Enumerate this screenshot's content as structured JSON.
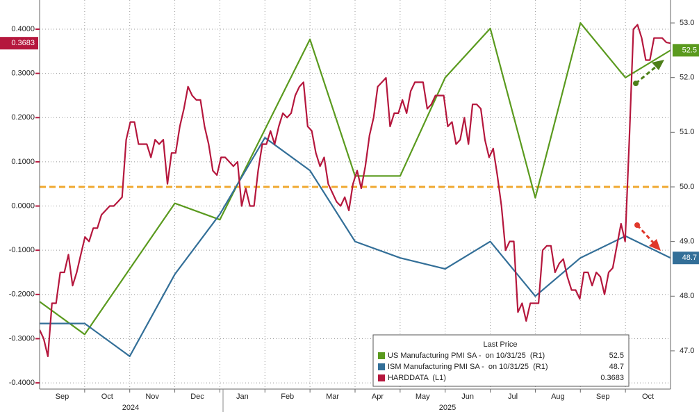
{
  "chart_data": {
    "type": "line",
    "xlim": [
      "2024-09",
      "2025-11"
    ],
    "xticks": [
      {
        "value": "2024-09",
        "label": "Sep"
      },
      {
        "value": "2024-10",
        "label": "Oct"
      },
      {
        "value": "2024-11",
        "label": "Nov"
      },
      {
        "value": "2024-12",
        "label": "Dec"
      },
      {
        "value": "2025-01",
        "label": "Jan"
      },
      {
        "value": "2025-02",
        "label": "Feb"
      },
      {
        "value": "2025-03",
        "label": "Mar"
      },
      {
        "value": "2025-04",
        "label": "Apr"
      },
      {
        "value": "2025-05",
        "label": "May"
      },
      {
        "value": "2025-06",
        "label": "Jun"
      },
      {
        "value": "2025-07",
        "label": "Jul"
      },
      {
        "value": "2025-08",
        "label": "Aug"
      },
      {
        "value": "2025-09",
        "label": "Sep"
      },
      {
        "value": "2025-10",
        "label": "Oct"
      }
    ],
    "year_labels": [
      "2024",
      "2025"
    ],
    "ylim": [
      -0.414,
      0.466
    ],
    "yticks": [
      {
        "value": 0.4,
        "label": "0.4000"
      },
      {
        "value": 0.3,
        "label": "0.3000"
      },
      {
        "value": 0.2,
        "label": "0.2000"
      },
      {
        "value": 0.1,
        "label": "0.1000"
      },
      {
        "value": 0,
        "label": "0.0000"
      },
      {
        "value": -0.1,
        "label": "-0.1000"
      },
      {
        "value": -0.2,
        "label": "-0.2000"
      },
      {
        "value": -0.3,
        "label": "-0.3000"
      },
      {
        "value": -0.4,
        "label": "-0.4000"
      }
    ],
    "y2lim": [
      46.3,
      53.42
    ],
    "y2ticks": [
      {
        "value": 53,
        "label": "53.0"
      },
      {
        "value": 52,
        "label": "52.0"
      },
      {
        "value": 51,
        "label": "51.0"
      },
      {
        "value": 50,
        "label": "50.0"
      },
      {
        "value": 49,
        "label": "49.0"
      },
      {
        "value": 48,
        "label": "48.0"
      },
      {
        "value": 47,
        "label": "47.0"
      }
    ],
    "grid": true,
    "hline": {
      "value": 50,
      "axis": "y2",
      "color": "#f0a830"
    },
    "legend_title": "Last Price",
    "series": [
      {
        "name": "US Manufacturing PMI SA -  on 10/31/25  (R1)",
        "color": "#5a9a1e",
        "axis": "y2",
        "x": [
          "2024-09",
          "2024-10",
          "2024-12",
          "2025-01",
          "2025-03",
          "2025-04",
          "2025-05",
          "2025-06",
          "2025-07",
          "2025-08",
          "2025-09",
          "2025-10",
          "2025-11"
        ],
        "values": [
          47.9,
          47.3,
          49.7,
          49.4,
          52.7,
          50.2,
          50.2,
          52.0,
          52.9,
          49.8,
          53.0,
          52.0,
          52.5
        ]
      },
      {
        "name": "ISM Manufacturing PMI SA -  on 10/31/25  (R1)",
        "color": "#336f98",
        "axis": "y2",
        "x": [
          "2024-09",
          "2024-10",
          "2024-11",
          "2024-12",
          "2025-01",
          "2025-02",
          "2025-03",
          "2025-04",
          "2025-05",
          "2025-06",
          "2025-07",
          "2025-08",
          "2025-09",
          "2025-10",
          "2025-11"
        ],
        "values": [
          47.5,
          47.5,
          46.9,
          48.4,
          49.5,
          50.9,
          50.3,
          49.0,
          48.7,
          48.5,
          49.0,
          48.0,
          48.7,
          49.1,
          48.7
        ]
      },
      {
        "name": "HARDDATA  (L1)",
        "color": "#b5173d",
        "axis": "y",
        "values": [
          -0.28,
          -0.3,
          -0.34,
          -0.22,
          -0.22,
          -0.15,
          -0.15,
          -0.11,
          -0.18,
          -0.15,
          -0.11,
          -0.07,
          -0.08,
          -0.05,
          -0.05,
          -0.02,
          -0.01,
          0.0,
          0.0,
          0.01,
          0.02,
          0.15,
          0.19,
          0.19,
          0.14,
          0.14,
          0.14,
          0.11,
          0.15,
          0.14,
          0.15,
          0.05,
          0.12,
          0.12,
          0.18,
          0.22,
          0.27,
          0.25,
          0.24,
          0.24,
          0.18,
          0.14,
          0.08,
          0.07,
          0.11,
          0.11,
          0.1,
          0.09,
          0.1,
          0.0,
          0.04,
          0.0,
          0.0,
          0.08,
          0.14,
          0.14,
          0.17,
          0.14,
          0.18,
          0.21,
          0.2,
          0.21,
          0.25,
          0.27,
          0.28,
          0.18,
          0.17,
          0.12,
          0.09,
          0.11,
          0.05,
          0.03,
          0.01,
          0.0,
          0.02,
          -0.01,
          0.05,
          0.08,
          0.04,
          0.09,
          0.16,
          0.2,
          0.27,
          0.28,
          0.29,
          0.18,
          0.21,
          0.21,
          0.24,
          0.21,
          0.26,
          0.28,
          0.28,
          0.28,
          0.22,
          0.23,
          0.25,
          0.25,
          0.25,
          0.18,
          0.19,
          0.14,
          0.15,
          0.2,
          0.14,
          0.23,
          0.23,
          0.22,
          0.15,
          0.11,
          0.13,
          0.07,
          0.0,
          -0.1,
          -0.08,
          -0.08,
          -0.24,
          -0.22,
          -0.26,
          -0.22,
          -0.22,
          -0.22,
          -0.1,
          -0.09,
          -0.09,
          -0.15,
          -0.13,
          -0.12,
          -0.16,
          -0.19,
          -0.19,
          -0.21,
          -0.15,
          -0.15,
          -0.18,
          -0.15,
          -0.16,
          -0.2,
          -0.15,
          -0.14,
          -0.09,
          -0.04,
          -0.08,
          0.15,
          0.4,
          0.41,
          0.38,
          0.33,
          0.33,
          0.38,
          0.38,
          0.38,
          0.37,
          0.3683
        ]
      }
    ]
  }
}
